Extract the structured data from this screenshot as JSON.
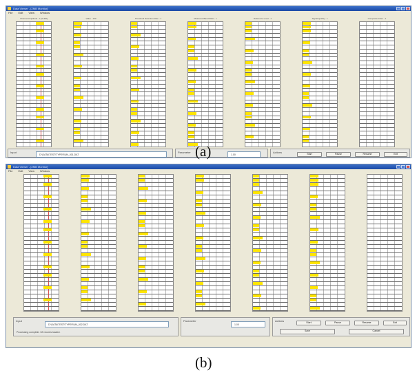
{
  "figure": {
    "caption_a": "(a)",
    "caption_b": "(b)"
  },
  "window_a": {
    "title": "Data Viewer - [ZMB Monitor]",
    "menu": [
      "File",
      "Edit",
      "View",
      "Window"
    ],
    "columns": [
      {
        "title": "Channel Amplitude  - 1 [0-400]"
      },
      {
        "title": "Value  - 100"
      },
      {
        "title": "Threshold Detection Rate - 1"
      },
      {
        "title": "Measured Band Ratio - 1"
      },
      {
        "title": "Reference Level  - 1"
      },
      {
        "title": "Signal Quality  - 1"
      },
      {
        "title": "Composite Index - 1"
      }
    ],
    "file_label": "Input",
    "file_value": "D:\\DATA\\TEST\\TYPE\\RUN_001.DAT",
    "param_label": "Parameter",
    "param_value": "1.00",
    "buttons_label": "Actions",
    "buttons": [
      "Start",
      "Pause",
      "Resume",
      "Exit"
    ]
  },
  "window_b": {
    "title": "Data Viewer - [ZMB Monitor]",
    "menu": [
      "File",
      "Edit",
      "View",
      "Window"
    ],
    "file_label": "Input",
    "file_value": "D:\\DATA\\TEST\\TYPE\\RUN_002.DAT",
    "param_label": "Parameter",
    "param_value": "1.00",
    "status_text": "Processing complete. 32 records loaded.",
    "buttons_label": "Actions",
    "buttons_top": [
      "Start",
      "Pause",
      "Resume",
      "Exit"
    ],
    "buttons_bottom": [
      "Save",
      "Cancel"
    ]
  },
  "colors": {
    "highlight": "#ffe600",
    "titlebar": "#2a5bb8",
    "selection": "#3a3ae0"
  }
}
